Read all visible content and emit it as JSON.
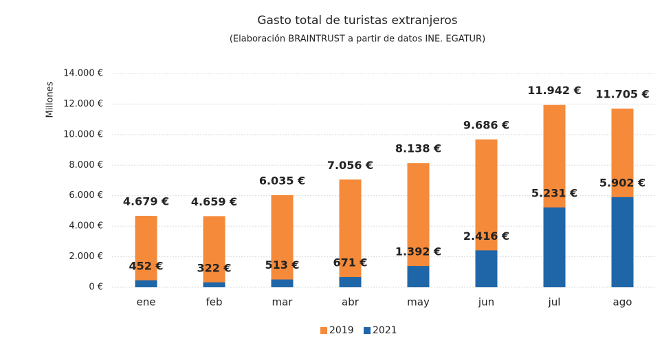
{
  "chart_data": {
    "type": "bar",
    "title": "Gasto total de turistas extranjeros",
    "subtitle": "(Elaboración BRAINTRUST a partir de datos INE. EGATUR)",
    "y_label": "Millones",
    "categories": [
      "ene",
      "feb",
      "mar",
      "abr",
      "may",
      "jun",
      "jul",
      "ago"
    ],
    "series": [
      {
        "name": "2019",
        "color": "#f58a3a",
        "values": [
          4679,
          4659,
          6035,
          7056,
          8138,
          9686,
          11942,
          11705
        ],
        "value_labels": [
          "4.679 €",
          "4.659 €",
          "6.035 €",
          "7.056 €",
          "8.138 €",
          "9.686 €",
          "11.942 €",
          "11.705 €"
        ]
      },
      {
        "name": "2021",
        "color": "#1f66a8",
        "values": [
          452,
          322,
          513,
          671,
          1392,
          2416,
          5231,
          5902
        ],
        "value_labels": [
          "452 €",
          "322 €",
          "513 €",
          "671 €",
          "1.392 €",
          "2.416 €",
          "5.231 €",
          "5.902 €"
        ]
      }
    ],
    "ylim": [
      0,
      14000
    ],
    "yticks": [
      {
        "value": 0,
        "label": "0 €"
      },
      {
        "value": 2000,
        "label": "2.000 €"
      },
      {
        "value": 4000,
        "label": "4.000 €"
      },
      {
        "value": 6000,
        "label": "6.000 €"
      },
      {
        "value": 8000,
        "label": "8.000 €"
      },
      {
        "value": 10000,
        "label": "10.000 €"
      },
      {
        "value": 12000,
        "label": "12.000 €"
      },
      {
        "value": 14000,
        "label": "14.000 €"
      }
    ],
    "grid": true,
    "legend": "bottom"
  }
}
